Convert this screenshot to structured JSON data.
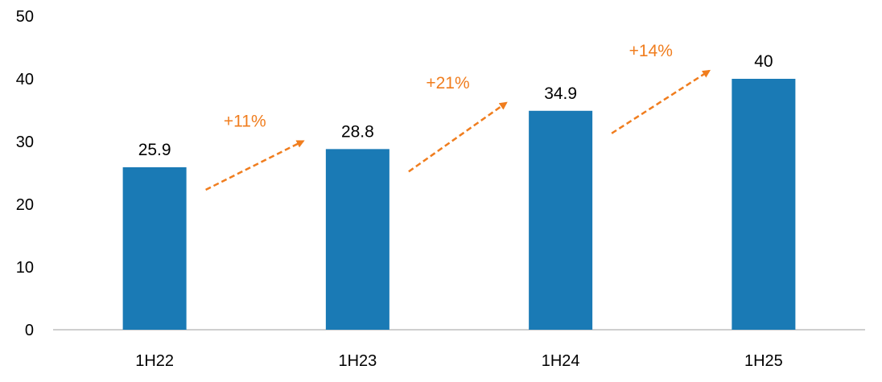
{
  "colors": {
    "bar": "#1a7ab5",
    "growth": "#f07d1e",
    "axis": "#bfbfbf",
    "text": "#000000"
  },
  "chart_data": {
    "type": "bar",
    "categories": [
      "1H22",
      "1H23",
      "1H24",
      "1H25"
    ],
    "values": [
      25.9,
      28.8,
      34.9,
      40
    ],
    "data_labels": [
      "25.9",
      "28.8",
      "34.9",
      "40"
    ],
    "yticks": [
      "0",
      "10",
      "20",
      "30",
      "40",
      "50"
    ],
    "ylim": [
      0,
      50
    ],
    "grid": false,
    "legend": "none",
    "title": "",
    "xlabel": "",
    "ylabel": "",
    "growth_annotations": [
      {
        "from": "1H22",
        "to": "1H23",
        "label": "+11%"
      },
      {
        "from": "1H23",
        "to": "1H24",
        "label": "+21%"
      },
      {
        "from": "1H24",
        "to": "1H25",
        "label": "+14%"
      }
    ]
  }
}
